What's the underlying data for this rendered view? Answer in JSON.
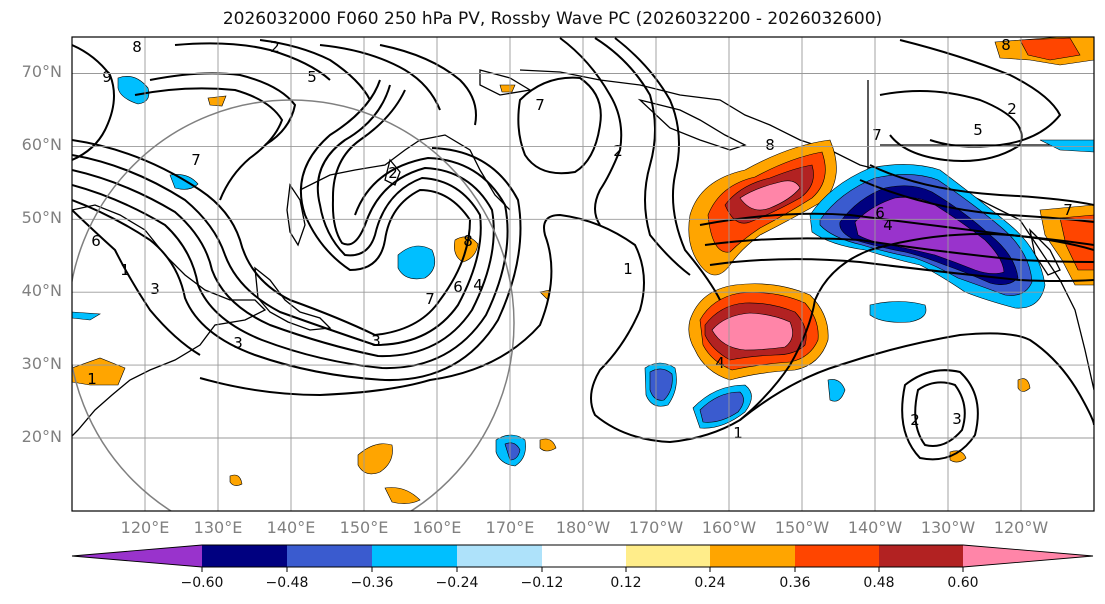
{
  "title": "2026032000 F060 250 hPa PV, Rossby Wave PC (2026032200 - 2026032600)",
  "map": {
    "projection": "equirectangular",
    "lon_range": [
      110,
      250
    ],
    "lat_range": [
      10,
      75
    ],
    "lat_labels": [
      "70°N",
      "60°N",
      "50°N",
      "40°N",
      "30°N",
      "20°N"
    ],
    "lat_values": [
      70,
      60,
      50,
      40,
      30,
      20
    ],
    "lon_labels": [
      "120°E",
      "130°E",
      "140°E",
      "150°E",
      "160°E",
      "170°E",
      "180°W",
      "170°W",
      "160°W",
      "150°W",
      "140°W",
      "130°W",
      "120°W"
    ],
    "lon_values": [
      120,
      130,
      140,
      150,
      160,
      170,
      180,
      190,
      200,
      210,
      220,
      230,
      240
    ],
    "contour_labels": [
      "2",
      "5",
      "7",
      "8",
      "9",
      "7",
      "2",
      "2",
      "7",
      "8",
      "2",
      "3",
      "8",
      "7",
      "6",
      "4",
      "1",
      "3",
      "7",
      "5",
      "6",
      "4",
      "1",
      "1",
      "4",
      "2",
      "3",
      "3",
      "8",
      "6",
      "1"
    ],
    "circle": {
      "center_lon": 138,
      "center_lat": 36,
      "radius_deg": 25
    }
  },
  "colorbar": {
    "colors": [
      "#9933cc",
      "#000080",
      "#3a5bcf",
      "#00bfff",
      "#aee2fa",
      "#ffffff",
      "#ffed8a",
      "#ffa500",
      "#ff4500",
      "#b22222",
      "#ff85a8"
    ],
    "tick_labels": [
      "−0.60",
      "−0.48",
      "−0.36",
      "−0.24",
      "−0.12",
      "0.12",
      "0.24",
      "0.36",
      "0.48",
      "0.60"
    ],
    "tick_values": [
      -0.6,
      -0.48,
      -0.36,
      -0.24,
      -0.12,
      0.12,
      0.24,
      0.36,
      0.48,
      0.6
    ]
  }
}
